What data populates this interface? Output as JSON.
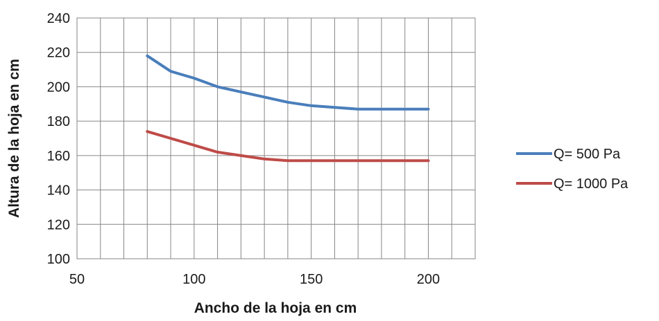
{
  "chart_data": {
    "type": "line",
    "title": "",
    "xlabel": "Ancho de la hoja en cm",
    "ylabel": "Altura de la hoja en cm",
    "xlim": [
      50,
      220
    ],
    "ylim": [
      100,
      240
    ],
    "x_major_ticks": [
      50,
      100,
      150,
      200
    ],
    "x_grid_step": 10,
    "y_ticks": [
      100,
      120,
      140,
      160,
      180,
      200,
      220,
      240
    ],
    "grid": true,
    "legend_position": "right",
    "series": [
      {
        "name": "Q= 500 Pa",
        "color": "#4a7ebb",
        "x": [
          80,
          90,
          100,
          110,
          120,
          130,
          140,
          150,
          160,
          170,
          180,
          190,
          200
        ],
        "y": [
          218,
          209,
          205,
          200,
          197,
          194,
          191,
          189,
          188,
          187,
          187,
          187,
          187
        ]
      },
      {
        "name": "Q= 1000 Pa",
        "color": "#be4b48",
        "x": [
          80,
          90,
          100,
          110,
          120,
          130,
          140,
          150,
          160,
          170,
          180,
          190,
          200
        ],
        "y": [
          174,
          170,
          166,
          162,
          160,
          158,
          157,
          157,
          157,
          157,
          157,
          157,
          157
        ]
      }
    ]
  }
}
